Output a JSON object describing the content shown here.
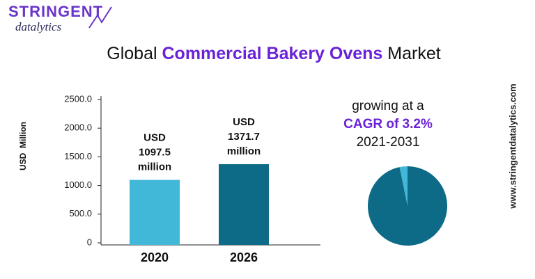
{
  "logo": {
    "top": "STRINGENT",
    "bottom": "datalytics"
  },
  "title_parts": [
    "Global",
    "Commercial Bakery Ovens",
    "Market"
  ],
  "cagr_text": {
    "line1": "growing at a",
    "line2": "CAGR of 3.2%",
    "line3": "2021-2031"
  },
  "website": "www.stringentdatalytics.com",
  "chart_data": [
    {
      "type": "bar",
      "y_label": "USD  Million",
      "categories": [
        "2020",
        "2026"
      ],
      "values": [
        1097.5,
        1371.7
      ],
      "value_labels": [
        "USD 1097.5 million",
        "USD 1371.7 million"
      ],
      "colors": [
        "#41b8d8",
        "#0e6b87"
      ],
      "ylim": [
        0,
        2500
      ],
      "yticks": [
        0,
        {
          "value": 500,
          "label": "500.0"
        },
        {
          "value": 1000,
          "label": "1000.0"
        },
        {
          "value": 1500,
          "label": "1500.0"
        },
        {
          "value": 2000,
          "label": "2000.0"
        },
        {
          "value": 2500,
          "label": "2500.0"
        }
      ]
    },
    {
      "type": "pie",
      "values": [
        3.2,
        96.8
      ],
      "colors": [
        "#41b8d8",
        "#0e6b87"
      ]
    }
  ]
}
